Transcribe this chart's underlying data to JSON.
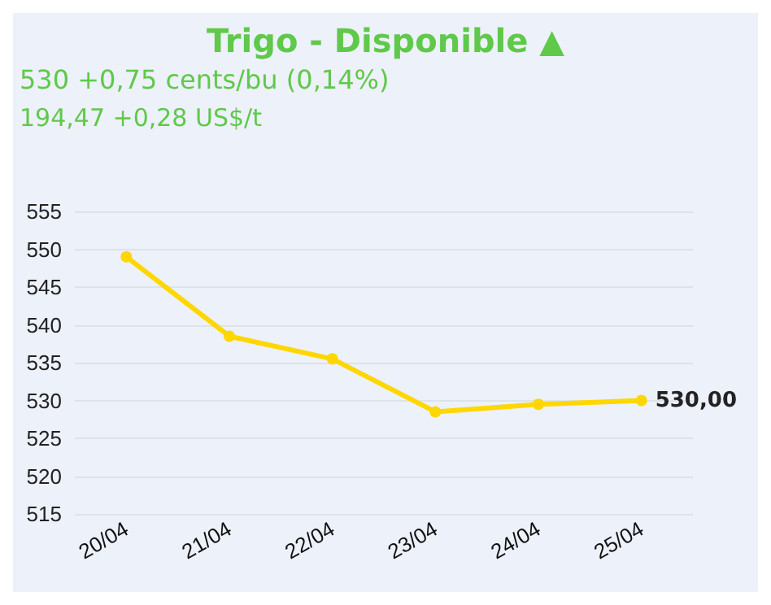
{
  "chart_data": {
    "type": "line",
    "title": "Trigo - Disponible ▲",
    "subtitle": "530 +0,75 cents/bu (0,14%)",
    "annotations": [
      "194,47 +0,28 US$/t"
    ],
    "categories": [
      "20/04",
      "21/04",
      "22/04",
      "23/04",
      "24/04",
      "25/04"
    ],
    "series": [
      {
        "color": "#ffd700",
        "values": [
          549,
          538.5,
          535.5,
          528.5,
          529.5,
          530
        ],
        "value_labels": [
          null,
          null,
          null,
          null,
          null,
          "530,00"
        ]
      }
    ],
    "ylim": [
      515,
      555
    ],
    "yticks": [
      515,
      520,
      525,
      530,
      535,
      540,
      545,
      550,
      555
    ],
    "grid": "y",
    "marker": "circle",
    "line_style": "solid"
  }
}
